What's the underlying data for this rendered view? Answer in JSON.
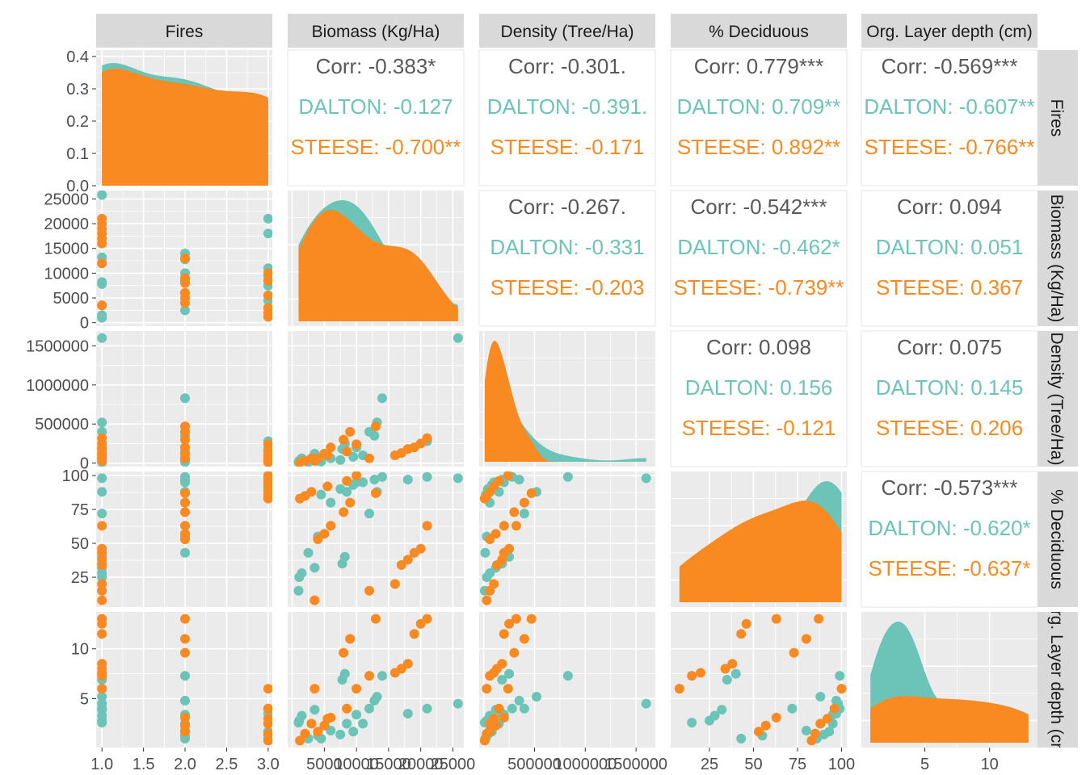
{
  "variables": [
    "Fires",
    "Biomass (Kg/Ha)",
    "Density (Tree/Ha)",
    "% Deciduous",
    "Org. Layer depth (cm)"
  ],
  "colors": {
    "DALTON": "#6cc4b8",
    "STEESE": "#f98a21",
    "overall": "#595959",
    "panel_bg": "#ebebeb",
    "strip_bg": "#d9d9d9",
    "grid": "#ffffff"
  },
  "groups": [
    "DALTON",
    "STEESE"
  ],
  "chart_data": {
    "type": "scatter",
    "chart_kind": "pairs-plot (scatterplot matrix)",
    "grid": true,
    "axes": {
      "Fires": {
        "lim": [
          0.93,
          3.05
        ],
        "ticks": [
          1.0,
          1.5,
          2.0,
          2.5,
          3.0
        ],
        "tick_labels": [
          "1.0",
          "1.5",
          "2.0",
          "2.5",
          "3.0"
        ]
      },
      "Biomass": {
        "lim": [
          -700,
          26700
        ],
        "ticks": [
          0,
          5000,
          10000,
          15000,
          20000,
          25000
        ],
        "tick_labels": [
          "0",
          "5000",
          "10000",
          "15000",
          "20000",
          "25000"
        ],
        "x_tick_labels": [
          "5000",
          "10000",
          "15000",
          "20000",
          "25000"
        ]
      },
      "Density": {
        "lim": [
          -45000,
          1690000
        ],
        "ticks": [
          0,
          500000,
          1000000,
          1500000
        ],
        "tick_labels": [
          "0",
          "500000",
          "1000000",
          "1500000"
        ],
        "x_tick_labels": [
          "500000",
          "1000000",
          "1500000"
        ]
      },
      "Deciduous": {
        "lim": [
          3,
          103
        ],
        "ticks": [
          25,
          50,
          75,
          100
        ],
        "tick_labels": [
          "25",
          "50",
          "75",
          "100"
        ]
      },
      "OrgLayer": {
        "lim": [
          0.1,
          13.7
        ],
        "ticks": [
          5,
          10
        ],
        "tick_labels": [
          "5",
          "10"
        ]
      }
    },
    "fires_density_y": {
      "lim": [
        0,
        0.42
      ],
      "ticks": [
        0.0,
        0.1,
        0.2,
        0.3,
        0.4
      ],
      "tick_labels": [
        "0.0",
        "0.1",
        "0.2",
        "0.3",
        "0.4"
      ]
    },
    "correlations": [
      {
        "row": 0,
        "col": 1,
        "overall": "Corr: -0.383*",
        "DALTON": "DALTON: -0.127",
        "STEESE": "STEESE: -0.700**"
      },
      {
        "row": 0,
        "col": 2,
        "overall": "Corr: -0.301.",
        "DALTON": "DALTON: -0.391.",
        "STEESE": "STEESE: -0.171"
      },
      {
        "row": 0,
        "col": 3,
        "overall": "Corr: 0.779***",
        "DALTON": "DALTON: 0.709**",
        "STEESE": "STEESE: 0.892**"
      },
      {
        "row": 0,
        "col": 4,
        "overall": "Corr: -0.569***",
        "DALTON": "DALTON: -0.607**",
        "STEESE": "STEESE: -0.766**"
      },
      {
        "row": 1,
        "col": 2,
        "overall": "Corr: -0.267.",
        "DALTON": "DALTON: -0.331",
        "STEESE": "STEESE: -0.203"
      },
      {
        "row": 1,
        "col": 3,
        "overall": "Corr: -0.542***",
        "DALTON": "DALTON: -0.462*",
        "STEESE": "STEESE: -0.739**"
      },
      {
        "row": 1,
        "col": 4,
        "overall": "Corr: 0.094",
        "DALTON": "DALTON: 0.051",
        "STEESE": "STEESE: 0.367"
      },
      {
        "row": 2,
        "col": 3,
        "overall": "Corr: 0.098",
        "DALTON": "DALTON: 0.156",
        "STEESE": "STEESE: -0.121"
      },
      {
        "row": 2,
        "col": 4,
        "overall": "Corr: 0.075",
        "DALTON": "DALTON: 0.145",
        "STEESE": "STEESE: 0.206"
      },
      {
        "row": 3,
        "col": 4,
        "overall": "Corr: -0.573***",
        "DALTON": "DALTON: -0.620*",
        "STEESE": "STEESE: -0.637*"
      }
    ],
    "observations": [
      {
        "g": "DALTON",
        "fires": 1,
        "biomass": 25800,
        "density": 1600000,
        "decid": 98,
        "org": 4.5
      },
      {
        "g": "DALTON",
        "fires": 1,
        "biomass": 13200,
        "density": 520000,
        "decid": 88,
        "org": 5.2
      },
      {
        "g": "DALTON",
        "fires": 1,
        "biomass": 12000,
        "density": 400000,
        "decid": 72,
        "org": 4.0
      },
      {
        "g": "DALTON",
        "fires": 1,
        "biomass": 8200,
        "density": 250000,
        "decid": 40,
        "org": 7.5
      },
      {
        "g": "DALTON",
        "fires": 1,
        "biomass": 7800,
        "density": 180000,
        "decid": 35,
        "org": 6.9
      },
      {
        "g": "DALTON",
        "fires": 1,
        "biomass": 3500,
        "density": 120000,
        "decid": 32,
        "org": 3.9
      },
      {
        "g": "DALTON",
        "fires": 1,
        "biomass": 1500,
        "density": 60000,
        "decid": 28,
        "org": 3.3
      },
      {
        "g": "DALTON",
        "fires": 1,
        "biomass": 1100,
        "density": 30000,
        "decid": 25,
        "org": 2.8
      },
      {
        "g": "DALTON",
        "fires": 1,
        "biomass": 1000,
        "density": 10000,
        "decid": 15,
        "org": 2.6
      },
      {
        "g": "DALTON",
        "fires": 2,
        "biomass": 14000,
        "density": 830000,
        "decid": 99,
        "org": 7.3
      },
      {
        "g": "DALTON",
        "fires": 2,
        "biomass": 12800,
        "density": 350000,
        "decid": 97,
        "org": 4.8
      },
      {
        "g": "DALTON",
        "fires": 2,
        "biomass": 10000,
        "density": 200000,
        "decid": 95,
        "org": 3.4
      },
      {
        "g": "DALTON",
        "fires": 2,
        "biomass": 8500,
        "density": 150000,
        "decid": 88,
        "org": 2.5
      },
      {
        "g": "DALTON",
        "fires": 2,
        "biomass": 6000,
        "density": 60000,
        "decid": 80,
        "org": 1.8
      },
      {
        "g": "DALTON",
        "fires": 2,
        "biomass": 4000,
        "density": 30000,
        "decid": 55,
        "org": 1.3
      },
      {
        "g": "DALTON",
        "fires": 2,
        "biomass": 2500,
        "density": 15000,
        "decid": 43,
        "org": 1.0
      },
      {
        "g": "DALTON",
        "fires": 3,
        "biomass": 21000,
        "density": 280000,
        "decid": 99,
        "org": 4.0
      },
      {
        "g": "DALTON",
        "fires": 3,
        "biomass": 18000,
        "density": 180000,
        "decid": 97,
        "org": 3.5
      },
      {
        "g": "DALTON",
        "fires": 3,
        "biomass": 11000,
        "density": 100000,
        "decid": 95,
        "org": 2.5
      },
      {
        "g": "DALTON",
        "fires": 3,
        "biomass": 9500,
        "density": 80000,
        "decid": 93,
        "org": 1.7
      },
      {
        "g": "DALTON",
        "fires": 3,
        "biomass": 7500,
        "density": 40000,
        "decid": 90,
        "org": 1.4
      },
      {
        "g": "DALTON",
        "fires": 3,
        "biomass": 4500,
        "density": 20000,
        "decid": 86,
        "org": 1.0
      },
      {
        "g": "STEESE",
        "fires": 1,
        "biomass": 21000,
        "density": 320000,
        "decid": 63,
        "org": 13.0
      },
      {
        "g": "STEESE",
        "fires": 1,
        "biomass": 20000,
        "density": 250000,
        "decid": 46,
        "org": 12.5
      },
      {
        "g": "STEESE",
        "fires": 1,
        "biomass": 19000,
        "density": 200000,
        "decid": 43,
        "org": 11.5
      },
      {
        "g": "STEESE",
        "fires": 1,
        "biomass": 18000,
        "density": 180000,
        "decid": 38,
        "org": 8.5
      },
      {
        "g": "STEESE",
        "fires": 1,
        "biomass": 17000,
        "density": 130000,
        "decid": 34,
        "org": 8.0
      },
      {
        "g": "STEESE",
        "fires": 1,
        "biomass": 16000,
        "density": 100000,
        "decid": 20,
        "org": 7.6
      },
      {
        "g": "STEESE",
        "fires": 1,
        "biomass": 12000,
        "density": 60000,
        "decid": 15,
        "org": 7.3
      },
      {
        "g": "STEESE",
        "fires": 1,
        "biomass": 3500,
        "density": 30000,
        "decid": 8,
        "org": 6.0
      },
      {
        "g": "STEESE",
        "fires": 2,
        "biomass": 13000,
        "density": 470000,
        "decid": 87,
        "org": 13.0
      },
      {
        "g": "STEESE",
        "fires": 2,
        "biomass": 9000,
        "density": 400000,
        "decid": 80,
        "org": 11.0
      },
      {
        "g": "STEESE",
        "fires": 2,
        "biomass": 8000,
        "density": 300000,
        "decid": 73,
        "org": 9.6
      },
      {
        "g": "STEESE",
        "fires": 2,
        "biomass": 6000,
        "density": 200000,
        "decid": 63,
        "org": 3.1
      },
      {
        "g": "STEESE",
        "fires": 2,
        "biomass": 5000,
        "density": 120000,
        "decid": 57,
        "org": 2.3
      },
      {
        "g": "STEESE",
        "fires": 2,
        "biomass": 4000,
        "density": 60000,
        "decid": 53,
        "org": 1.7
      },
      {
        "g": "STEESE",
        "fires": 3,
        "biomass": 10000,
        "density": 240000,
        "decid": 100,
        "org": 6.0
      },
      {
        "g": "STEESE",
        "fires": 3,
        "biomass": 8500,
        "density": 150000,
        "decid": 96,
        "org": 4.0
      },
      {
        "g": "STEESE",
        "fires": 3,
        "biomass": 5500,
        "density": 100000,
        "decid": 92,
        "org": 3.0
      },
      {
        "g": "STEESE",
        "fires": 3,
        "biomass": 3000,
        "density": 60000,
        "decid": 88,
        "org": 2.5
      },
      {
        "g": "STEESE",
        "fires": 3,
        "biomass": 2000,
        "density": 30000,
        "decid": 85,
        "org": 1.5
      },
      {
        "g": "STEESE",
        "fires": 3,
        "biomass": 1200,
        "density": 10000,
        "decid": 83,
        "org": 0.8
      }
    ]
  }
}
